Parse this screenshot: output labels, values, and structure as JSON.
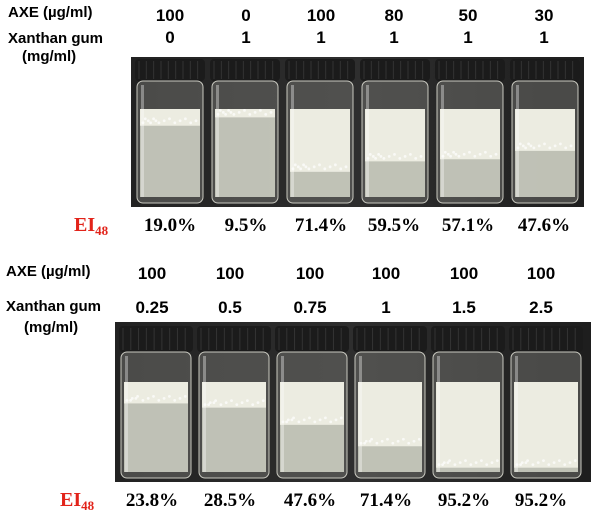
{
  "colors": {
    "ei_label": "#e2231a",
    "photo_background": "#2e2e2e",
    "vial_cap": "#1b1b1b",
    "emulsion": "#eeeee4",
    "liquid": "#d3d6c9"
  },
  "panel_top": {
    "axe_label": "AXE (µg/ml)",
    "xg_label_line1": "Xanthan gum",
    "xg_label_line2": "(mg/ml)",
    "axe_values": [
      "100",
      "0",
      "100",
      "80",
      "50",
      "30"
    ],
    "xg_values": [
      "0",
      "1",
      "1",
      "1",
      "1",
      "1"
    ],
    "ei_label": "EI",
    "ei_subscript": "48",
    "ei_values": [
      "19.0%",
      "9.5%",
      "71.4%",
      "59.5%",
      "57.1%",
      "47.6%"
    ],
    "emulsion_fraction": [
      0.19,
      0.095,
      0.714,
      0.595,
      0.571,
      0.476
    ]
  },
  "panel_bottom": {
    "axe_label": "AXE (µg/ml)",
    "xg_label_line1": "Xanthan gum",
    "xg_label_line2": "(mg/ml)",
    "axe_values": [
      "100",
      "100",
      "100",
      "100",
      "100",
      "100"
    ],
    "xg_values": [
      "0.25",
      "0.5",
      "0.75",
      "1",
      "1.5",
      "2.5"
    ],
    "ei_label": "EI",
    "ei_subscript": "48",
    "ei_values": [
      "23.8%",
      "28.5%",
      "47.6%",
      "71.4%",
      "95.2%",
      "95.2%"
    ],
    "emulsion_fraction": [
      0.238,
      0.285,
      0.476,
      0.714,
      0.952,
      0.952
    ]
  }
}
